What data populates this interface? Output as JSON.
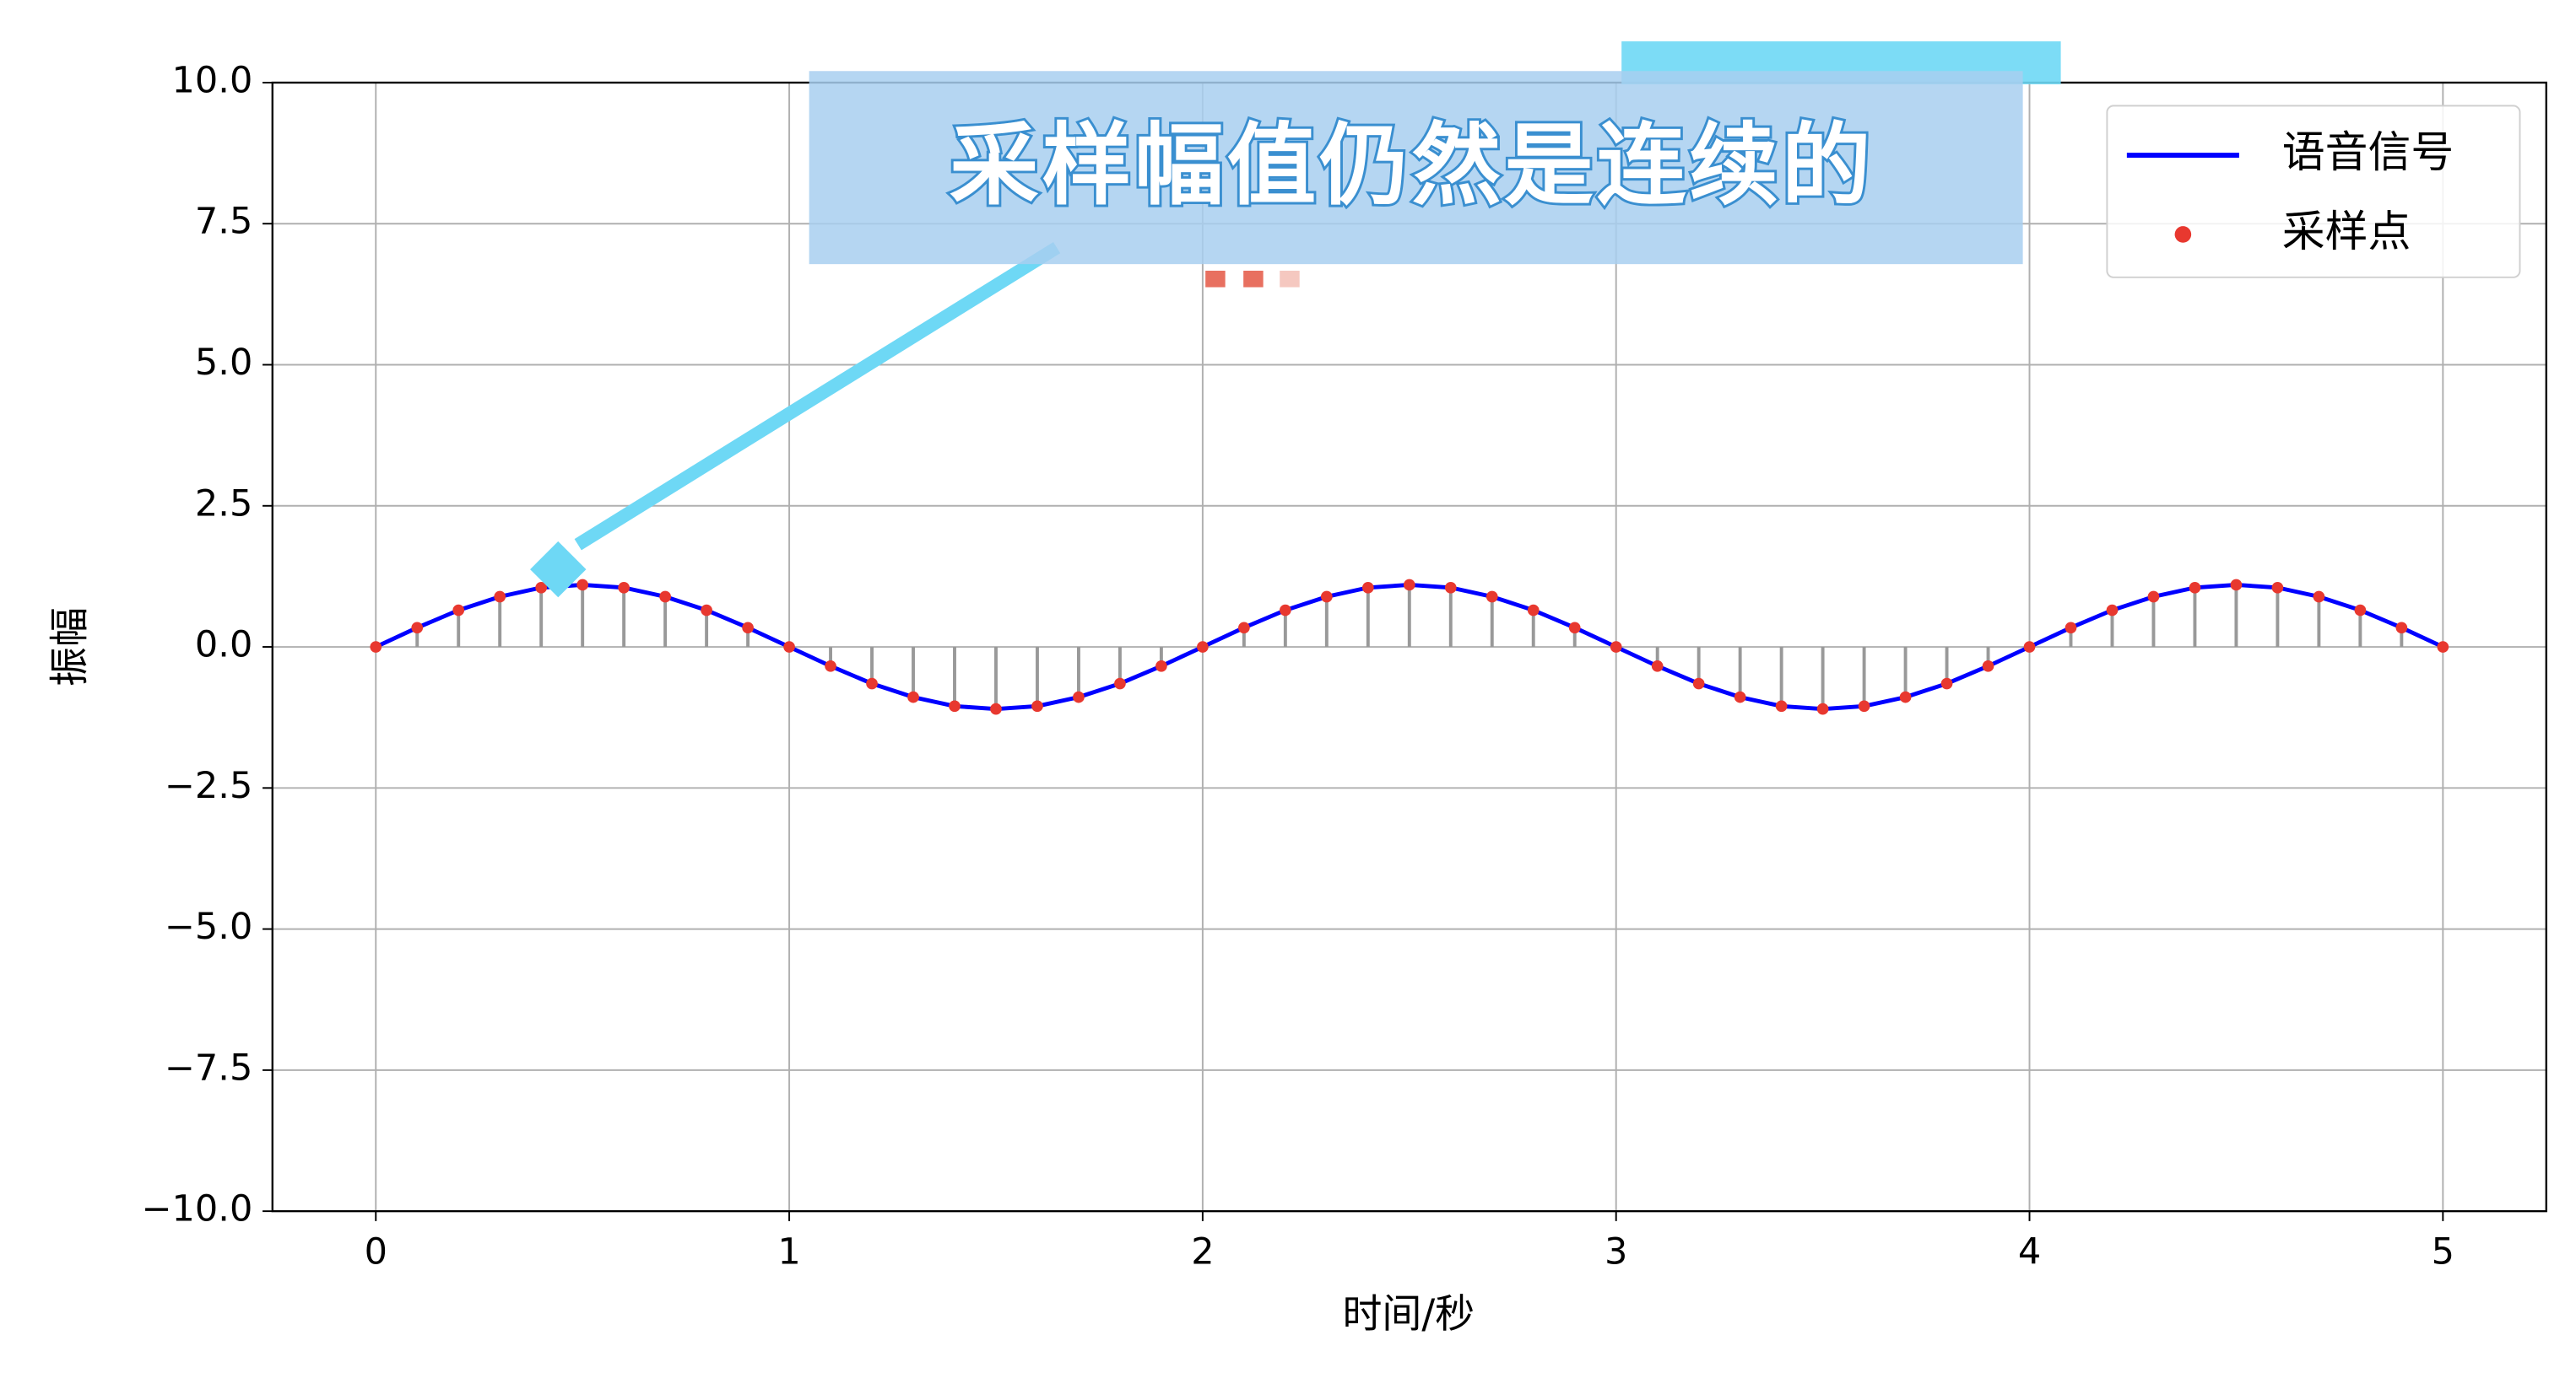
{
  "chart_data": {
    "type": "line",
    "annotation": "采样幅值仍然是连续的",
    "xlabel": "时间/秒",
    "ylabel": "振幅",
    "x": [
      0,
      0.1,
      0.2,
      0.3,
      0.4,
      0.5,
      0.6,
      0.7,
      0.8,
      0.9,
      1,
      1.1,
      1.2,
      1.3,
      1.4,
      1.5,
      1.6,
      1.7,
      1.8,
      1.9,
      2,
      2.1,
      2.2,
      2.3,
      2.4,
      2.5,
      2.6,
      2.7,
      2.8,
      2.9,
      3,
      3.1,
      3.2,
      3.3,
      3.4,
      3.5,
      3.6,
      3.7,
      3.8,
      3.9,
      4,
      4.1,
      4.2,
      4.3,
      4.4,
      4.5,
      4.6,
      4.7,
      4.8,
      4.9,
      5
    ],
    "series": [
      {
        "name": "语音信号",
        "color": "#0000ff",
        "style": "line",
        "values": [
          0,
          0.34,
          0.65,
          0.89,
          1.05,
          1.1,
          1.05,
          0.89,
          0.65,
          0.34,
          0,
          -0.34,
          -0.65,
          -0.89,
          -1.05,
          -1.1,
          -1.05,
          -0.89,
          -0.65,
          -0.34,
          0,
          0.34,
          0.65,
          0.89,
          1.05,
          1.1,
          1.05,
          0.89,
          0.65,
          0.34,
          0,
          -0.34,
          -0.65,
          -0.89,
          -1.05,
          -1.1,
          -1.05,
          -0.89,
          -0.65,
          -0.34,
          0,
          0.34,
          0.65,
          0.89,
          1.05,
          1.1,
          1.05,
          0.89,
          0.65,
          0.34,
          0
        ]
      },
      {
        "name": "采样点",
        "color": "#e8382f",
        "style": "points",
        "stem_color": "#999999",
        "values": [
          0,
          0.34,
          0.65,
          0.89,
          1.05,
          1.1,
          1.05,
          0.89,
          0.65,
          0.34,
          0,
          -0.34,
          -0.65,
          -0.89,
          -1.05,
          -1.1,
          -1.05,
          -0.89,
          -0.65,
          -0.34,
          0,
          0.34,
          0.65,
          0.89,
          1.05,
          1.1,
          1.05,
          0.89,
          0.65,
          0.34,
          0,
          -0.34,
          -0.65,
          -0.89,
          -1.05,
          -1.1,
          -1.05,
          -0.89,
          -0.65,
          -0.34,
          0,
          0.34,
          0.65,
          0.89,
          1.05,
          1.1,
          1.05,
          0.89,
          0.65,
          0.34,
          0
        ]
      }
    ],
    "xlim": [
      -0.25,
      5.25
    ],
    "ylim": [
      -10,
      10
    ],
    "xticks": [
      0,
      1,
      2,
      3,
      4,
      5
    ],
    "yticks": [
      {
        "value": -10,
        "label": "−10.0"
      },
      {
        "value": -7.5,
        "label": "−7.5"
      },
      {
        "value": -5,
        "label": "−5.0"
      },
      {
        "value": -2.5,
        "label": "−2.5"
      },
      {
        "value": 0,
        "label": "0.0"
      },
      {
        "value": 2.5,
        "label": "2.5"
      },
      {
        "value": 5,
        "label": "5.0"
      },
      {
        "value": 7.5,
        "label": "7.5"
      },
      {
        "value": 10,
        "label": "10.0"
      }
    ],
    "grid": true,
    "legend": "upper right"
  }
}
